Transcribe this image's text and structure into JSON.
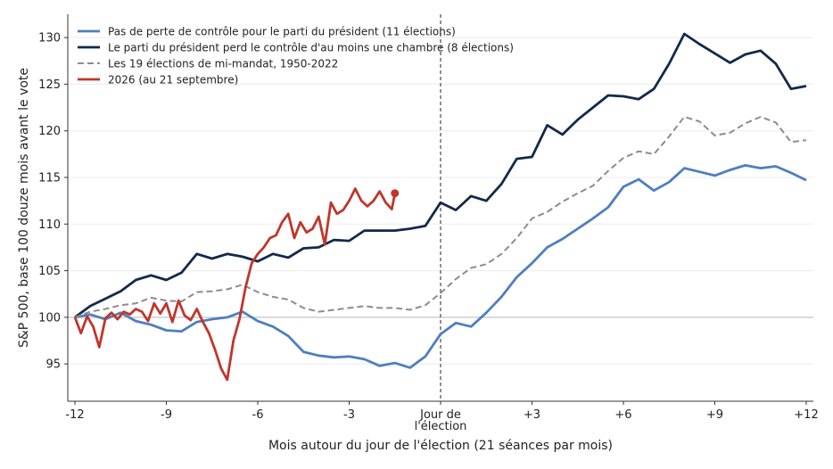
{
  "chart_data": {
    "type": "line",
    "xlabel": "Mois autour du jour de l'élection (21 séances par mois)",
    "ylabel": "S&P 500, base 100 douze mois avant le vote",
    "xlim": [
      -12,
      12
    ],
    "ylim": [
      91,
      132.5
    ],
    "x_ticks": [
      {
        "value": -12,
        "label": "-12"
      },
      {
        "value": -9,
        "label": "-9"
      },
      {
        "value": -6,
        "label": "-6"
      },
      {
        "value": -3,
        "label": "-3"
      },
      {
        "value": 0,
        "label": "Jour de\nl'élection"
      },
      {
        "value": 3,
        "label": "+3"
      },
      {
        "value": 6,
        "label": "+6"
      },
      {
        "value": 9,
        "label": "+9"
      },
      {
        "value": 12,
        "label": "+12"
      }
    ],
    "y_ticks": [
      95,
      100,
      105,
      110,
      115,
      120,
      125,
      130
    ],
    "grid": "horizontal",
    "reference_line_y": 100,
    "vertical_marker_x": 0,
    "legend_position": "top-left",
    "series": [
      {
        "name": "Pas de perte de contrôle pour le parti du président (11 élections)",
        "color": "#4e7fbf",
        "dash": "solid",
        "x": [
          -12,
          -11.5,
          -11,
          -10.5,
          -10,
          -9.5,
          -9,
          -8.5,
          -8,
          -7.5,
          -7,
          -6.5,
          -6,
          -5.5,
          -5,
          -4.5,
          -4,
          -3.5,
          -3,
          -2.5,
          -2,
          -1.5,
          -1,
          -0.5,
          0,
          0.5,
          1,
          1.5,
          2,
          2.5,
          3,
          3.5,
          4,
          4.5,
          5,
          5.5,
          6,
          6.5,
          7,
          7.5,
          8,
          8.5,
          9,
          9.5,
          10,
          10.5,
          11,
          11.5,
          12
        ],
        "y": [
          100,
          100.3,
          99.8,
          100.5,
          99.6,
          99.2,
          98.6,
          98.5,
          99.5,
          99.8,
          100.0,
          100.6,
          99.6,
          99.0,
          98.0,
          96.3,
          95.9,
          95.7,
          95.8,
          95.5,
          94.8,
          95.1,
          94.6,
          95.8,
          98.2,
          99.4,
          99.0,
          100.5,
          102.2,
          104.3,
          105.8,
          107.5,
          108.4,
          109.5,
          110.6,
          111.8,
          114.0,
          114.8,
          113.6,
          114.5,
          116.0,
          115.6,
          115.2,
          115.8,
          116.3,
          116.0,
          116.2,
          115.5,
          114.7
        ]
      },
      {
        "name": "Le parti du président perd le contrôle d'au moins une chambre (8 élections)",
        "color": "#13294b",
        "dash": "solid",
        "x": [
          -12,
          -11.5,
          -11,
          -10.5,
          -10,
          -9.5,
          -9,
          -8.5,
          -8,
          -7.5,
          -7,
          -6.5,
          -6,
          -5.5,
          -5,
          -4.5,
          -4,
          -3.5,
          -3,
          -2.5,
          -2,
          -1.5,
          -1,
          -0.5,
          0,
          0.5,
          1,
          1.5,
          2,
          2.5,
          3,
          3.5,
          4,
          4.5,
          5,
          5.5,
          6,
          6.5,
          7,
          7.5,
          8,
          8.5,
          9,
          9.5,
          10,
          10.5,
          11,
          11.5,
          12
        ],
        "y": [
          100,
          101.2,
          102.0,
          102.8,
          104.0,
          104.5,
          104.0,
          104.8,
          106.8,
          106.3,
          106.8,
          106.5,
          106.0,
          106.8,
          106.4,
          107.4,
          107.5,
          108.3,
          108.2,
          109.3,
          109.3,
          109.3,
          109.5,
          109.8,
          112.3,
          111.5,
          113.0,
          112.5,
          114.3,
          117.0,
          117.2,
          120.6,
          119.6,
          121.2,
          122.5,
          123.8,
          123.7,
          123.4,
          124.5,
          127.2,
          130.4,
          129.3,
          128.3,
          127.3,
          128.2,
          128.6,
          127.2,
          124.5,
          124.8
        ]
      },
      {
        "name": "Les 19 élections de mi-mandat, 1950-2022",
        "color": "#8c8c8c",
        "dash": "dashed",
        "x": [
          -12,
          -11.5,
          -11,
          -10.5,
          -10,
          -9.5,
          -9,
          -8.5,
          -8,
          -7.5,
          -7,
          -6.5,
          -6,
          -5.5,
          -5,
          -4.5,
          -4,
          -3.5,
          -3,
          -2.5,
          -2,
          -1.5,
          -1,
          -0.5,
          0,
          0.5,
          1,
          1.5,
          2,
          2.5,
          3,
          3.5,
          4,
          4.5,
          5,
          5.5,
          6,
          6.5,
          7,
          7.5,
          8,
          8.5,
          9,
          9.5,
          10,
          10.5,
          11,
          11.5,
          12
        ],
        "y": [
          100,
          100.6,
          100.9,
          101.3,
          101.5,
          102.1,
          101.8,
          101.7,
          102.7,
          102.8,
          103.0,
          103.5,
          102.7,
          102.2,
          101.9,
          101.0,
          100.6,
          100.8,
          101.0,
          101.2,
          101.0,
          101.0,
          100.8,
          101.3,
          102.6,
          104.1,
          105.3,
          105.7,
          106.8,
          108.5,
          110.6,
          111.3,
          112.4,
          113.3,
          114.1,
          115.7,
          117.1,
          117.8,
          117.5,
          119.4,
          121.5,
          121.0,
          119.5,
          119.8,
          120.8,
          121.5,
          120.9,
          118.8,
          119.0
        ]
      },
      {
        "name": "2026 (au 21 septembre)",
        "color": "#c0362c",
        "dash": "solid",
        "endpoint_marker": true,
        "x": [
          -12,
          -11.8,
          -11.6,
          -11.4,
          -11.2,
          -11,
          -10.8,
          -10.6,
          -10.4,
          -10.2,
          -10,
          -9.8,
          -9.6,
          -9.4,
          -9.2,
          -9,
          -8.8,
          -8.6,
          -8.4,
          -8.2,
          -8,
          -7.8,
          -7.6,
          -7.4,
          -7.2,
          -7,
          -6.8,
          -6.6,
          -6.4,
          -6.2,
          -6,
          -5.8,
          -5.6,
          -5.4,
          -5.2,
          -5,
          -4.8,
          -4.6,
          -4.4,
          -4.2,
          -4,
          -3.8,
          -3.6,
          -3.4,
          -3.2,
          -3,
          -2.8,
          -2.6,
          -2.4,
          -2.2,
          -2,
          -1.8,
          -1.6,
          -1.5
        ],
        "y": [
          100,
          98.3,
          100.1,
          99.0,
          96.8,
          99.9,
          100.5,
          99.8,
          100.6,
          100.3,
          100.9,
          100.6,
          99.6,
          101.5,
          100.4,
          101.5,
          99.5,
          101.8,
          100.2,
          99.7,
          100.9,
          99.5,
          98.3,
          96.5,
          94.5,
          93.3,
          97.5,
          99.8,
          103.2,
          105.8,
          106.8,
          107.5,
          108.5,
          108.8,
          110.2,
          111.1,
          108.5,
          110.2,
          109.1,
          109.5,
          110.8,
          107.8,
          112.3,
          111.1,
          111.5,
          112.5,
          113.8,
          112.5,
          111.9,
          112.5,
          113.5,
          112.3,
          111.6,
          113.3
        ]
      }
    ]
  }
}
